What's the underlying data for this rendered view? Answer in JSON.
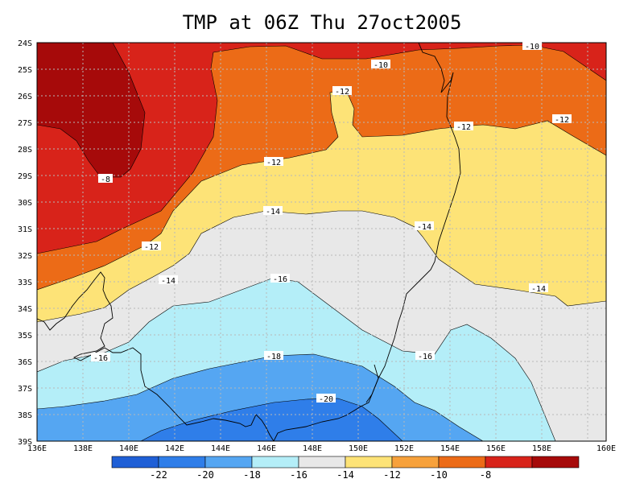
{
  "title": "TMP at 06Z Thu 27oct2005",
  "axes": {
    "lon_labels": [
      "136E",
      "138E",
      "140E",
      "142E",
      "144E",
      "146E",
      "148E",
      "150E",
      "152E",
      "154E",
      "156E",
      "158E",
      "160E"
    ],
    "lat_labels": [
      "24S",
      "25S",
      "26S",
      "27S",
      "28S",
      "29S",
      "30S",
      "31S",
      "32S",
      "33S",
      "34S",
      "35S",
      "36S",
      "37S",
      "38S",
      "39S"
    ]
  },
  "contour_labels": [
    {
      "text": "-10",
      "id": "a"
    },
    {
      "text": "-10",
      "id": "b"
    },
    {
      "text": "-12",
      "id": "c"
    },
    {
      "text": "-12",
      "id": "d"
    },
    {
      "text": "-12",
      "id": "e"
    },
    {
      "text": "-12",
      "id": "f"
    },
    {
      "text": "-12",
      "id": "g"
    },
    {
      "text": "-8",
      "id": "h"
    },
    {
      "text": "-14",
      "id": "i"
    },
    {
      "text": "-14",
      "id": "j"
    },
    {
      "text": "-14",
      "id": "k"
    },
    {
      "text": "-14",
      "id": "l"
    },
    {
      "text": "-16",
      "id": "m"
    },
    {
      "text": "-16",
      "id": "n"
    },
    {
      "text": "-16",
      "id": "o"
    },
    {
      "text": "-18",
      "id": "p"
    },
    {
      "text": "-20",
      "id": "q"
    }
  ],
  "colorbar": {
    "colors": [
      "#1f5fd6",
      "#2f7ee9",
      "#55a6f2",
      "#b4eef8",
      "#e8e8e8",
      "#fde377",
      "#f7a13b",
      "#ec6b17",
      "#d8231a",
      "#a60a0a"
    ],
    "labels": [
      "-22",
      "-20",
      "-18",
      "-16",
      "-14",
      "-12",
      "-10",
      "-8"
    ]
  }
}
